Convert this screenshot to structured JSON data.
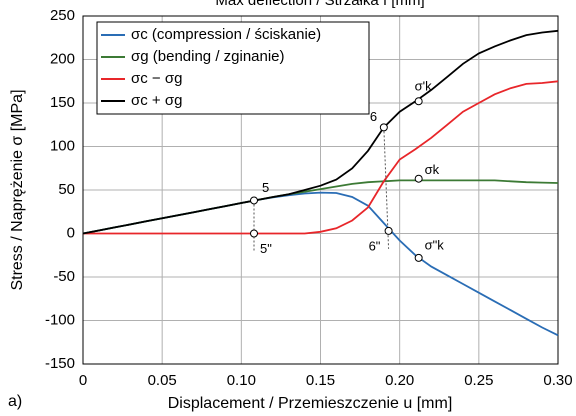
{
  "chart_data": {
    "type": "line",
    "title": "Max deflection / Strzałka f [mm]",
    "xlabel": "Displacement / Przemieszczenie u [mm]",
    "ylabel": "Stress / Naprężenie σ [MPa]",
    "panel_label": "a)",
    "x": [
      0,
      0.01,
      0.02,
      0.03,
      0.04,
      0.05,
      0.06,
      0.07,
      0.08,
      0.09,
      0.1,
      0.11,
      0.12,
      0.13,
      0.14,
      0.15,
      0.16,
      0.17,
      0.18,
      0.19,
      0.2,
      0.21,
      0.22,
      0.23,
      0.24,
      0.25,
      0.26,
      0.27,
      0.28,
      0.29,
      0.3
    ],
    "series": [
      {
        "name": "σc (compression / ściskanie)",
        "color": "#2a6db5",
        "values": [
          0,
          3.5,
          7,
          10.5,
          14,
          17.5,
          21,
          24.5,
          28,
          31.5,
          35,
          38.5,
          41.5,
          44,
          46,
          47,
          46.5,
          42,
          32,
          12,
          -8,
          -25,
          -38,
          -48,
          -58,
          -68,
          -78,
          -88,
          -98,
          -108,
          -117
        ]
      },
      {
        "name": "σg (bending / zginanie)",
        "color": "#3c7a35",
        "values": [
          0,
          3.5,
          7,
          10.5,
          14,
          17.5,
          21,
          24.5,
          28,
          31.5,
          35,
          38.5,
          42,
          45,
          48,
          51,
          54,
          57,
          59,
          60,
          61,
          61,
          61,
          61,
          61,
          61,
          61,
          60,
          59,
          58.5,
          58
        ]
      },
      {
        "name": "σc − σg",
        "color": "#e8262a",
        "values": [
          0,
          0,
          0,
          0,
          0,
          0,
          0,
          0,
          0,
          0,
          0,
          0,
          0,
          0,
          0,
          2,
          6,
          15,
          30,
          60,
          85,
          97,
          110,
          125,
          140,
          150,
          160,
          167,
          172,
          173,
          175
        ]
      },
      {
        "name": "σc + σg",
        "color": "#000000",
        "values": [
          0,
          3.5,
          7,
          10.5,
          14,
          17.5,
          21,
          24.5,
          28,
          31.5,
          35,
          38.5,
          42,
          45,
          50,
          55,
          62,
          75,
          95,
          122,
          140,
          152,
          165,
          180,
          195,
          207,
          215,
          222,
          228,
          231,
          233
        ]
      }
    ],
    "annotations": [
      {
        "text": "5",
        "x": 0.108,
        "y": 38
      },
      {
        "text": "5\"",
        "x": 0.108,
        "y": 0
      },
      {
        "text": "6",
        "x": 0.19,
        "y": 122
      },
      {
        "text": "6\"",
        "x": 0.193,
        "y": 3
      },
      {
        "text": "σk",
        "x": 0.212,
        "y": 63
      },
      {
        "text": "σ'k",
        "x": 0.212,
        "y": 152
      },
      {
        "text": "σ\"k",
        "x": 0.212,
        "y": -28
      }
    ],
    "xlim": [
      0,
      0.3
    ],
    "ylim": [
      -150,
      250
    ],
    "xticks": [
      0,
      0.05,
      {
        "value": 0.1,
        "label": "0.10"
      },
      0.15,
      {
        "value": 0.2,
        "label": "0.20"
      },
      0.25,
      {
        "value": 0.3,
        "label": "0.30"
      }
    ],
    "yticks": [
      -150,
      -100,
      -50,
      0,
      50,
      100,
      150,
      200,
      250
    ],
    "grid": true,
    "legend": "upper left"
  }
}
